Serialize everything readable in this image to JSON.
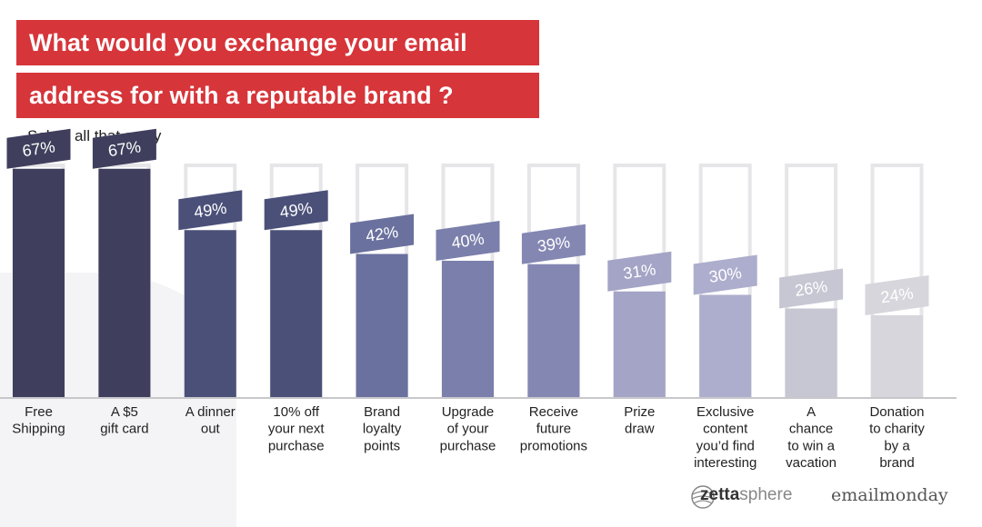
{
  "title_line1": "What would you exchange your email",
  "title_line2": "address for with a reputable brand ?",
  "subtitle": "Select all that apply",
  "brands": {
    "zetta_bold": "zetta",
    "zetta_light": "sphere",
    "emailmonday": "emailmonday"
  },
  "colors": {
    "title_bg": "#d6353a",
    "bar_outline": "#e6e6e9",
    "baseline": "#c8c8cc"
  },
  "chart_data": {
    "type": "bar",
    "categories": [
      [
        "Free",
        "Shipping"
      ],
      [
        "A $5",
        "gift card"
      ],
      [
        "A dinner",
        "out"
      ],
      [
        "10% off",
        "your next",
        "purchase"
      ],
      [
        "Brand",
        "loyalty",
        "points"
      ],
      [
        "Upgrade",
        "of your",
        "purchase"
      ],
      [
        "Receive",
        "future",
        "promotions"
      ],
      [
        "Prize",
        "draw"
      ],
      [
        "Exclusive",
        "content",
        "you’d find",
        "interesting"
      ],
      [
        "A",
        "chance",
        "to win a",
        "vacation"
      ],
      [
        "Donation",
        "to charity",
        "by a",
        "brand"
      ]
    ],
    "values": [
      67,
      67,
      49,
      49,
      42,
      40,
      39,
      31,
      30,
      26,
      24
    ],
    "value_labels": [
      "67%",
      "67%",
      "49%",
      "49%",
      "42%",
      "40%",
      "39%",
      "31%",
      "30%",
      "26%",
      "24%"
    ],
    "bar_colors": [
      "#3f3f5d",
      "#3f3f5d",
      "#4b5079",
      "#4b5079",
      "#6a719e",
      "#7a7fab",
      "#8587b3",
      "#a4a4c6",
      "#adadcd",
      "#c7c7d3",
      "#d6d6dc"
    ],
    "ylim": [
      0,
      100
    ]
  }
}
